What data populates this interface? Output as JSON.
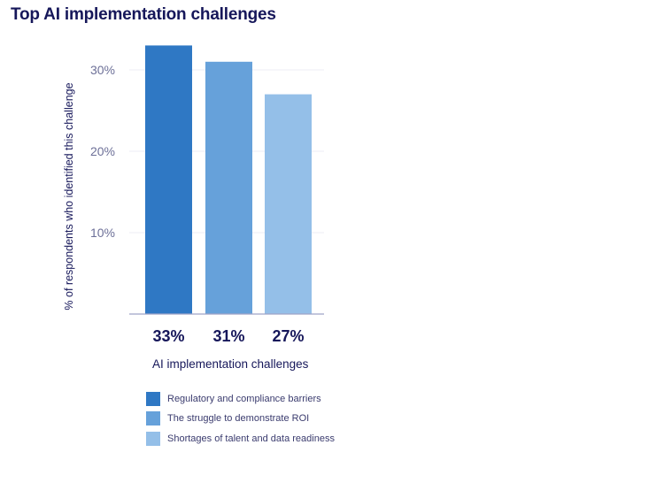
{
  "chart_data": {
    "type": "bar",
    "title": "Top AI implementation challenges",
    "xlabel": "AI implementation challenges",
    "ylabel": "% of respondents who identified this challenge",
    "ylim": [
      0,
      36
    ],
    "yticks": [
      10,
      20,
      30
    ],
    "ytick_labels": [
      "10%",
      "20%",
      "30%"
    ],
    "categories": [
      "Regulatory and compliance barriers",
      "The struggle to demonstrate ROI",
      "Shortages of talent and data readiness"
    ],
    "values": [
      33,
      31,
      27
    ],
    "value_labels": [
      "33%",
      "31%",
      "27%"
    ],
    "colors": [
      "#2f78c4",
      "#66a1da",
      "#94bfe8"
    ],
    "grid": true,
    "legend_position": "bottom-left"
  },
  "axis_color": "#9fa4c7",
  "grid_color": "#eceef4"
}
